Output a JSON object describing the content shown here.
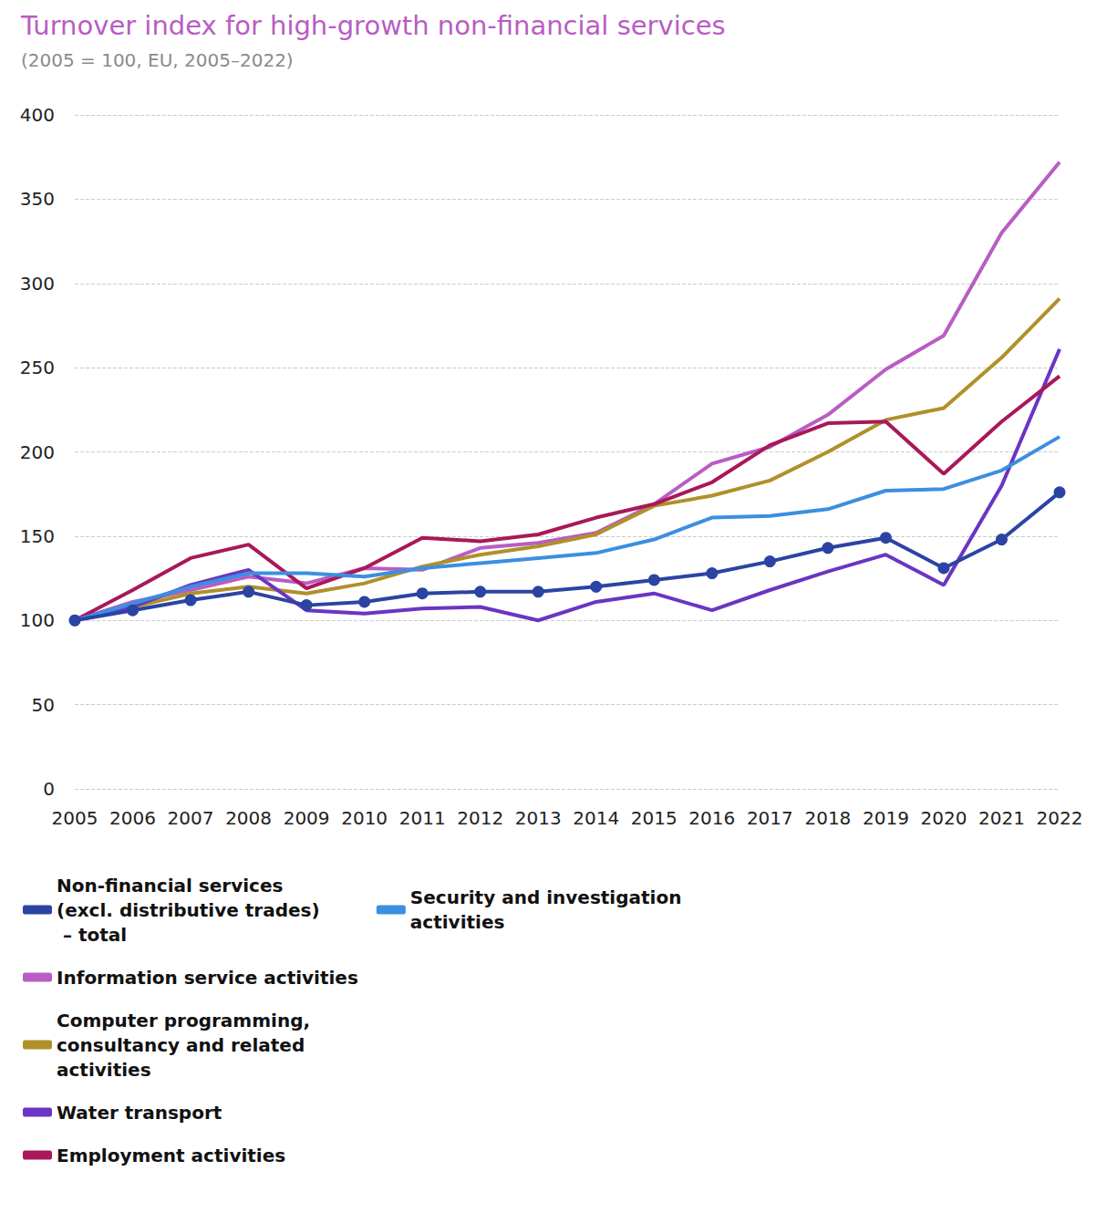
{
  "chart_data": {
    "type": "line",
    "title": "Turnover index for high-growth non-financial services",
    "subtitle": "(2005 = 100, EU, 2005–2022)",
    "categories": [
      "2005",
      "2006",
      "2007",
      "2008",
      "2009",
      "2010",
      "2011",
      "2012",
      "2013",
      "2014",
      "2015",
      "2016",
      "2017",
      "2018",
      "2019",
      "2020",
      "2021",
      "2022"
    ],
    "ylim": [
      0,
      400
    ],
    "yticks": [
      0,
      50,
      100,
      150,
      200,
      250,
      300,
      350,
      400
    ],
    "grid": true,
    "legend": "bottom-left",
    "series": [
      {
        "name": "Non-financial services\n(excl. distributive trades)\n – total",
        "color": "#2b44a3",
        "marker": "circle",
        "values": [
          100,
          106,
          112,
          117,
          109,
          111,
          116,
          117,
          117,
          120,
          124,
          128,
          135,
          143,
          149,
          131,
          148,
          176
        ]
      },
      {
        "name": "Information service activities",
        "color": "#b95cc4",
        "marker": "none",
        "values": [
          100,
          111,
          118,
          126,
          122,
          131,
          130,
          143,
          146,
          152,
          169,
          193,
          203,
          222,
          249,
          269,
          330,
          372
        ]
      },
      {
        "name": "Computer programming,\nconsultancy and related\nactivities",
        "color": "#b0902a",
        "marker": "none",
        "values": [
          100,
          108,
          116,
          120,
          116,
          122,
          132,
          139,
          144,
          151,
          168,
          174,
          183,
          200,
          219,
          226,
          256,
          291
        ]
      },
      {
        "name": "Water transport",
        "color": "#6a35c2",
        "marker": "none",
        "values": [
          100,
          108,
          121,
          130,
          106,
          104,
          107,
          108,
          100,
          111,
          116,
          106,
          118,
          129,
          139,
          121,
          180,
          261
        ]
      },
      {
        "name": "Employment activities",
        "color": "#a8185a",
        "marker": "none",
        "values": [
          100,
          118,
          137,
          145,
          119,
          131,
          149,
          147,
          151,
          161,
          169,
          182,
          204,
          217,
          218,
          187,
          218,
          245
        ]
      },
      {
        "name": "Security and investigation\nactivities",
        "color": "#3b8fe0",
        "marker": "none",
        "values": [
          100,
          110,
          120,
          128,
          128,
          126,
          131,
          134,
          137,
          140,
          148,
          161,
          162,
          166,
          177,
          178,
          189,
          209
        ]
      }
    ]
  }
}
